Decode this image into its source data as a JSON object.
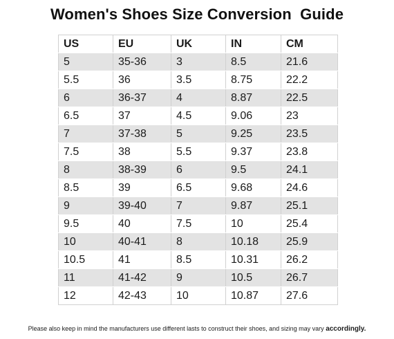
{
  "title": "Women's Shoes Size Conversion  Guide",
  "table": {
    "headers": [
      "US",
      "EU",
      "UK",
      "IN",
      "CM"
    ],
    "rows": [
      [
        "5",
        "35-36",
        "3",
        "8.5",
        "21.6"
      ],
      [
        "5.5",
        "36",
        "3.5",
        "8.75",
        "22.2"
      ],
      [
        "6",
        "36-37",
        "4",
        "8.87",
        "22.5"
      ],
      [
        "6.5",
        "37",
        "4.5",
        "9.06",
        "23"
      ],
      [
        "7",
        "37-38",
        "5",
        "9.25",
        "23.5"
      ],
      [
        "7.5",
        "38",
        "5.5",
        "9.37",
        "23.8"
      ],
      [
        "8",
        "38-39",
        "6",
        "9.5",
        "24.1"
      ],
      [
        "8.5",
        "39",
        "6.5",
        "9.68",
        "24.6"
      ],
      [
        "9",
        "39-40",
        "7",
        "9.87",
        "25.1"
      ],
      [
        "9.5",
        "40",
        "7.5",
        "10",
        "25.4"
      ],
      [
        "10",
        "40-41",
        "8",
        "10.18",
        "25.9"
      ],
      [
        "10.5",
        "41",
        "8.5",
        "10.31",
        "26.2"
      ],
      [
        "11",
        "41-42",
        "9",
        "10.5",
        "26.7"
      ],
      [
        "12",
        "42-43",
        "10",
        "10.87",
        "27.6"
      ]
    ]
  },
  "disclaimer": {
    "text": "Please also keep in mind the manufacturers use different lasts to construct their shoes, and sizing may vary ",
    "emphasis": "accordingly."
  },
  "colors": {
    "shaded_row": "#e3e3e3",
    "plain_row": "#ffffff",
    "text": "#1a1a1a"
  }
}
